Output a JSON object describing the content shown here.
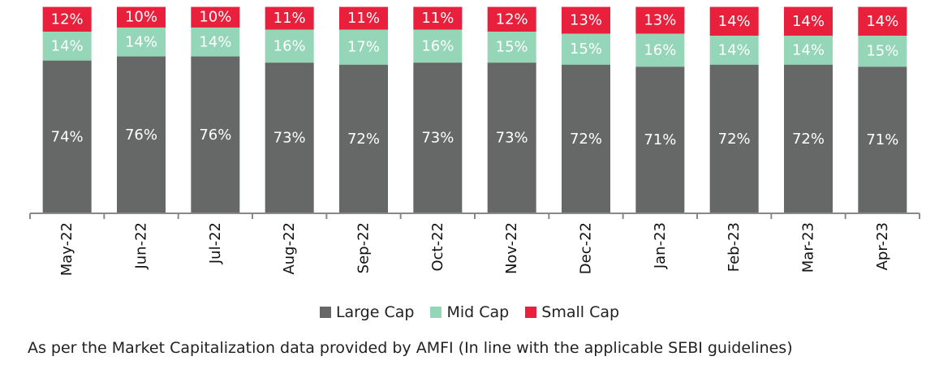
{
  "chart_data": {
    "type": "bar",
    "stacked": true,
    "categories": [
      "May-22",
      "Jun-22",
      "Jul-22",
      "Aug-22",
      "Sep-22",
      "Oct-22",
      "Nov-22",
      "Dec-22",
      "Jan-23",
      "Feb-23",
      "Mar-23",
      "Apr-23"
    ],
    "series": [
      {
        "name": "Large Cap",
        "color": "#666867",
        "values": [
          74,
          76,
          76,
          73,
          72,
          73,
          73,
          72,
          71,
          72,
          72,
          71
        ]
      },
      {
        "name": "Mid Cap",
        "color": "#94d6b7",
        "values": [
          14,
          14,
          14,
          16,
          17,
          16,
          15,
          15,
          16,
          14,
          14,
          15
        ]
      },
      {
        "name": "Small Cap",
        "color": "#e8203c",
        "values": [
          12,
          10,
          10,
          11,
          11,
          11,
          12,
          13,
          13,
          14,
          14,
          14
        ]
      }
    ],
    "ylim": [
      0,
      100
    ],
    "grid": false,
    "legend": "bottom",
    "value_label_suffix": "%"
  },
  "footnote": "As per the Market Capitalization data provided by AMFI (In line with the applicable SEBI guidelines)"
}
